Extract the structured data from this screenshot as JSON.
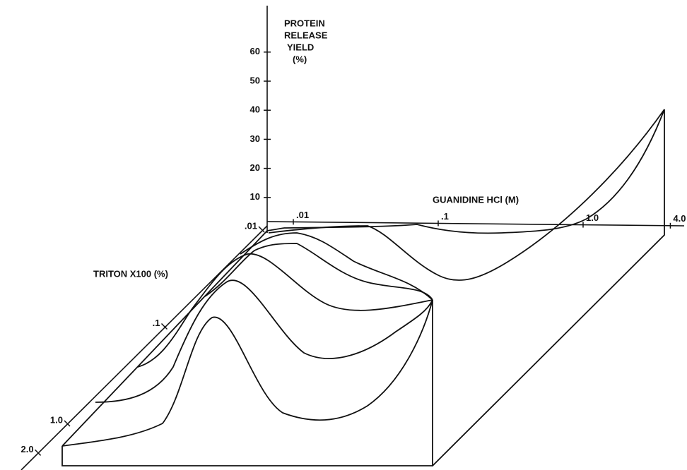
{
  "chart_data": {
    "type": "surface3d",
    "z_label": [
      "PROTEIN",
      "RELEASE",
      "YIELD",
      "(%)"
    ],
    "x_label": "GUANIDINE HCl (M)",
    "y_label": "TRITON X100 (%)",
    "zlim": [
      0,
      60
    ],
    "zticks": [
      10,
      20,
      30,
      40,
      50,
      60
    ],
    "xscale": "log",
    "xlim": [
      0.01,
      4.0
    ],
    "xticks": [
      {
        "value": 0.01,
        "label": ".01"
      },
      {
        "value": 0.1,
        "label": ".1"
      },
      {
        "value": 1.0,
        "label": "1.0"
      },
      {
        "value": 4.0,
        "label": "4.0"
      }
    ],
    "yscale": "log",
    "ylim": [
      0.01,
      2.0
    ],
    "yticks": [
      {
        "value": 0.01,
        "label": ".01"
      },
      {
        "value": 0.1,
        "label": ".1"
      },
      {
        "value": 1.0,
        "label": "1.0"
      },
      {
        "value": 2.0,
        "label": "2.0"
      }
    ]
  }
}
